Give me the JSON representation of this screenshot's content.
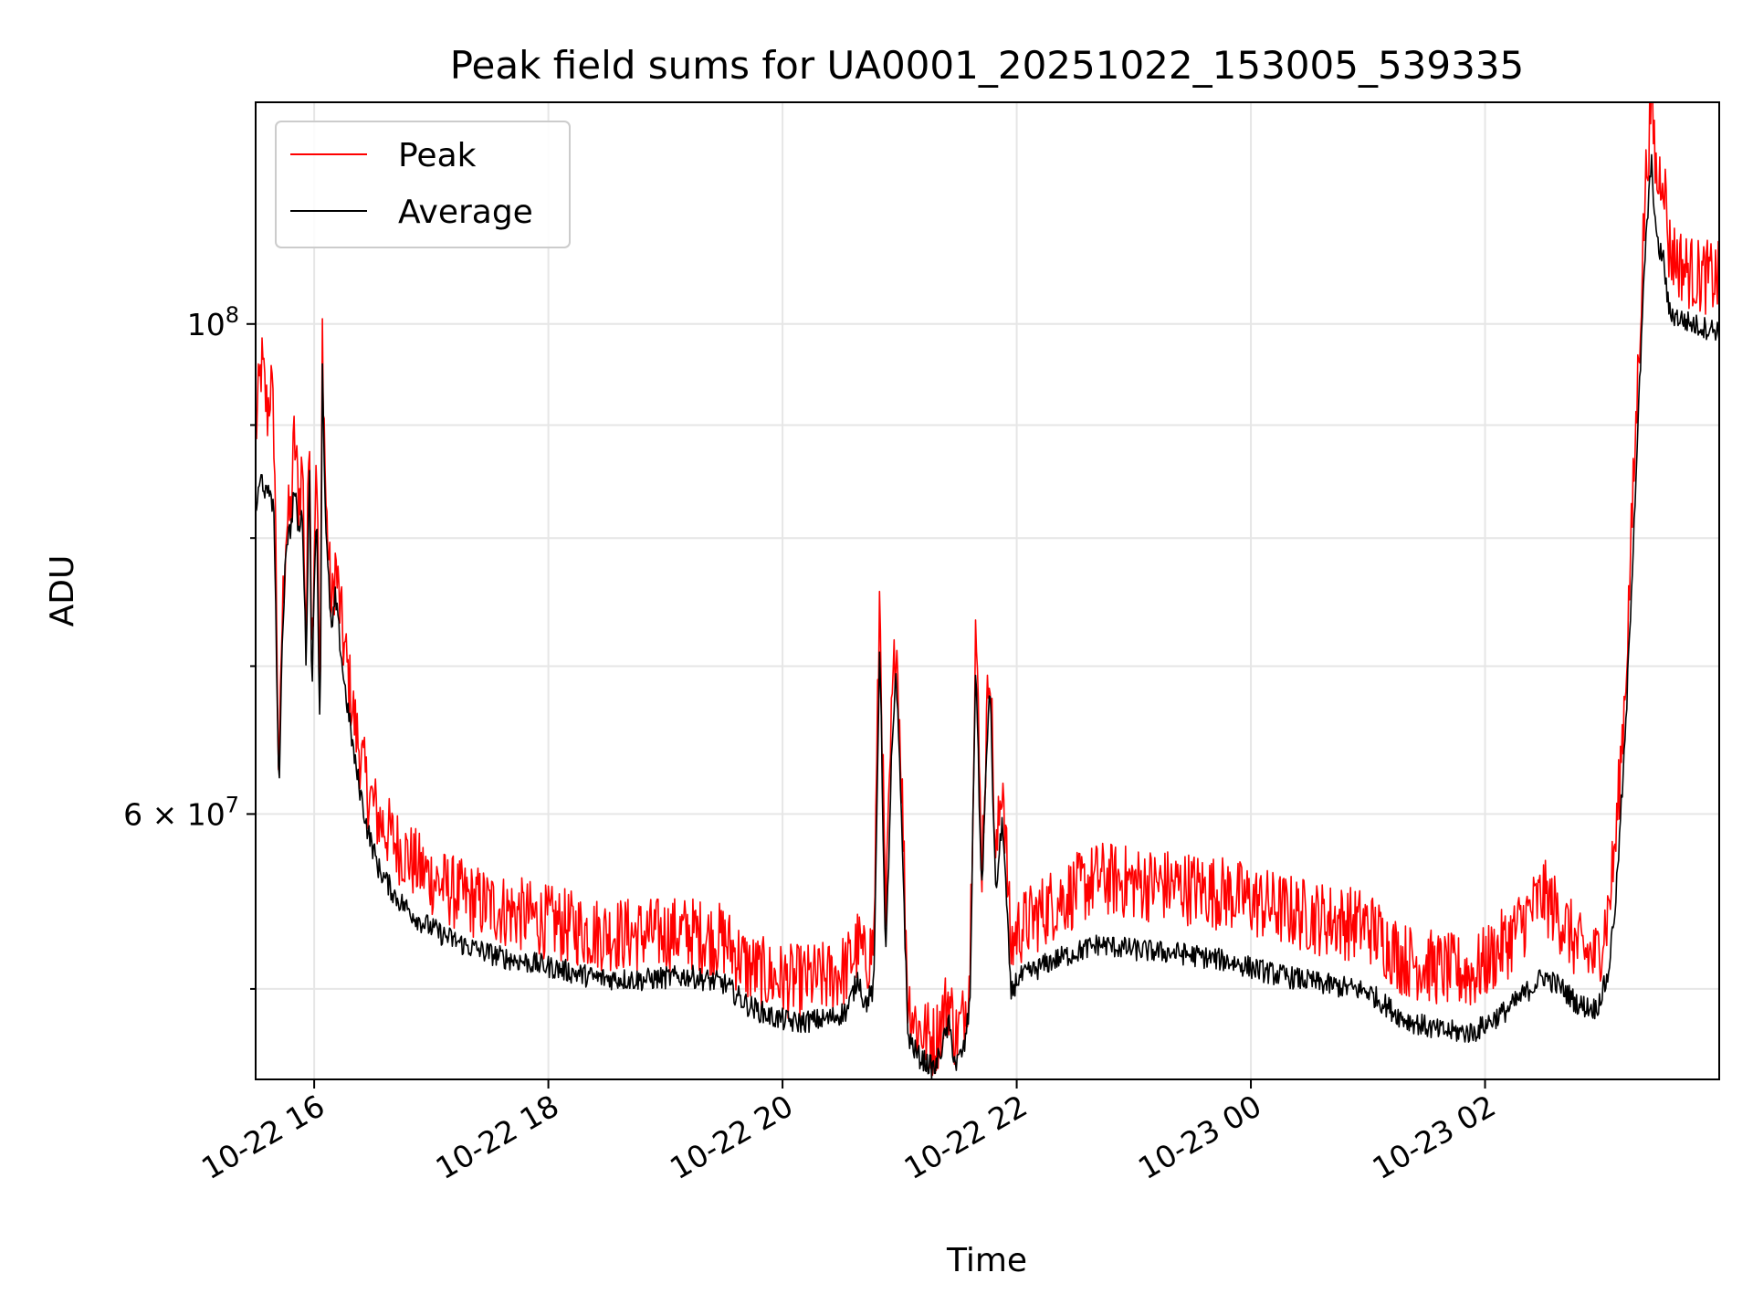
{
  "chart_data": {
    "type": "line",
    "title": "Peak field sums for UA0001_20251022_153005_539335",
    "xlabel": "Time",
    "ylabel": "ADU",
    "y_scale": "log",
    "ylim": [
      45500000,
      126000000
    ],
    "x_hours_range": [
      15.5,
      28.0
    ],
    "x_axis_origin": "2025-10-22 00:00",
    "grid": true,
    "legend_position": "upper-left",
    "x_ticks": [
      {
        "hours": 16,
        "label": "10-22 16"
      },
      {
        "hours": 18,
        "label": "10-22 18"
      },
      {
        "hours": 20,
        "label": "10-22 20"
      },
      {
        "hours": 22,
        "label": "10-22 22"
      },
      {
        "hours": 24,
        "label": "10-23 00"
      },
      {
        "hours": 26,
        "label": "10-23 02"
      }
    ],
    "y_major_ticks": [
      {
        "value": 100000000,
        "base": "10",
        "exp": "8",
        "coef": ""
      },
      {
        "value": 60000000,
        "base": "10",
        "exp": "7",
        "coef": "6 × "
      }
    ],
    "y_minor_ticks": [
      50000000,
      70000000,
      80000000,
      90000000
    ],
    "series": [
      {
        "name": "Peak",
        "color": "#ff0000",
        "noise_frac": 0.04,
        "points": [
          [
            15.5,
            88000000
          ],
          [
            15.55,
            95000000
          ],
          [
            15.6,
            90000000
          ],
          [
            15.63,
            93000000
          ],
          [
            15.66,
            88000000
          ],
          [
            15.7,
            60000000
          ],
          [
            15.72,
            71000000
          ],
          [
            15.76,
            80000000
          ],
          [
            15.8,
            81000000
          ],
          [
            15.83,
            88000000
          ],
          [
            15.87,
            82000000
          ],
          [
            15.9,
            86000000
          ],
          [
            15.93,
            71000000
          ],
          [
            15.96,
            91000000
          ],
          [
            15.98,
            70000000
          ],
          [
            16.02,
            88000000
          ],
          [
            16.05,
            65000000
          ],
          [
            16.07,
            98000000
          ],
          [
            16.1,
            82000000
          ],
          [
            16.15,
            73000000
          ],
          [
            16.18,
            77000000
          ],
          [
            16.25,
            71000000
          ],
          [
            16.35,
            65000000
          ],
          [
            16.45,
            61000000
          ],
          [
            16.55,
            59000000
          ],
          [
            16.7,
            57500000
          ],
          [
            16.9,
            56000000
          ],
          [
            17.1,
            55000000
          ],
          [
            17.3,
            54300000
          ],
          [
            17.6,
            53700000
          ],
          [
            18.0,
            53000000
          ],
          [
            18.4,
            52400000
          ],
          [
            18.8,
            52300000
          ],
          [
            19.2,
            52400000
          ],
          [
            19.5,
            52000000
          ],
          [
            19.7,
            50600000
          ],
          [
            19.9,
            50000000
          ],
          [
            20.1,
            49800000
          ],
          [
            20.4,
            50000000
          ],
          [
            20.55,
            50500000
          ],
          [
            20.65,
            51800000
          ],
          [
            20.7,
            50800000
          ],
          [
            20.78,
            51800000
          ],
          [
            20.83,
            75000000
          ],
          [
            20.88,
            52500000
          ],
          [
            20.93,
            65000000
          ],
          [
            20.97,
            72000000
          ],
          [
            21.02,
            61000000
          ],
          [
            21.07,
            49000000
          ],
          [
            21.15,
            47500000
          ],
          [
            21.3,
            46800000
          ],
          [
            21.42,
            49000000
          ],
          [
            21.48,
            47000000
          ],
          [
            21.55,
            48000000
          ],
          [
            21.6,
            50500000
          ],
          [
            21.65,
            73000000
          ],
          [
            21.7,
            56000000
          ],
          [
            21.77,
            71000000
          ],
          [
            21.82,
            56000000
          ],
          [
            21.88,
            62000000
          ],
          [
            21.95,
            51500000
          ],
          [
            22.0,
            52500000
          ],
          [
            22.3,
            54000000
          ],
          [
            22.7,
            55500000
          ],
          [
            23.0,
            55200000
          ],
          [
            23.4,
            55000000
          ],
          [
            23.8,
            54600000
          ],
          [
            24.2,
            53800000
          ],
          [
            24.6,
            53200000
          ],
          [
            25.0,
            52800000
          ],
          [
            25.3,
            51000000
          ],
          [
            25.6,
            50500000
          ],
          [
            25.9,
            50200000
          ],
          [
            26.2,
            52000000
          ],
          [
            26.5,
            54500000
          ],
          [
            26.65,
            53200000
          ],
          [
            26.8,
            51500000
          ],
          [
            26.95,
            51000000
          ],
          [
            27.05,
            53500000
          ],
          [
            27.12,
            58000000
          ],
          [
            27.2,
            68000000
          ],
          [
            27.3,
            92000000
          ],
          [
            27.37,
            114000000
          ],
          [
            27.42,
            125000000
          ],
          [
            27.47,
            114000000
          ],
          [
            27.52,
            117000000
          ],
          [
            27.57,
            107000000
          ],
          [
            27.62,
            106000000
          ],
          [
            27.7,
            104800000
          ],
          [
            27.8,
            104000000
          ],
          [
            27.9,
            103800000
          ],
          [
            28.0,
            103600000
          ]
        ]
      },
      {
        "name": "Average",
        "color": "#000000",
        "noise_frac": 0.012,
        "points": [
          [
            15.5,
            82000000
          ],
          [
            15.55,
            85000000
          ],
          [
            15.6,
            83000000
          ],
          [
            15.63,
            84000000
          ],
          [
            15.66,
            81000000
          ],
          [
            15.7,
            60000000
          ],
          [
            15.72,
            70000000
          ],
          [
            15.76,
            79500000
          ],
          [
            15.8,
            80500000
          ],
          [
            15.83,
            84000000
          ],
          [
            15.87,
            80000000
          ],
          [
            15.9,
            82000000
          ],
          [
            15.93,
            70000000
          ],
          [
            15.96,
            86000000
          ],
          [
            15.98,
            68000000
          ],
          [
            16.02,
            83000000
          ],
          [
            16.05,
            64000000
          ],
          [
            16.07,
            96000000
          ],
          [
            16.1,
            80000000
          ],
          [
            16.15,
            72000000
          ],
          [
            16.18,
            75000000
          ],
          [
            16.25,
            69000000
          ],
          [
            16.35,
            63000000
          ],
          [
            16.45,
            59000000
          ],
          [
            16.55,
            56500000
          ],
          [
            16.7,
            54800000
          ],
          [
            16.9,
            53500000
          ],
          [
            17.1,
            52700000
          ],
          [
            17.3,
            52100000
          ],
          [
            17.6,
            51500000
          ],
          [
            18.0,
            51000000
          ],
          [
            18.4,
            50400000
          ],
          [
            18.8,
            50300000
          ],
          [
            19.2,
            50500000
          ],
          [
            19.5,
            50100000
          ],
          [
            19.7,
            49000000
          ],
          [
            19.9,
            48400000
          ],
          [
            20.1,
            48100000
          ],
          [
            20.4,
            48300000
          ],
          [
            20.55,
            48700000
          ],
          [
            20.65,
            50500000
          ],
          [
            20.7,
            49000000
          ],
          [
            20.78,
            49800000
          ],
          [
            20.83,
            72000000
          ],
          [
            20.88,
            51000000
          ],
          [
            20.93,
            63000000
          ],
          [
            20.97,
            69000000
          ],
          [
            21.02,
            59000000
          ],
          [
            21.07,
            47500000
          ],
          [
            21.15,
            46500000
          ],
          [
            21.3,
            45800000
          ],
          [
            21.42,
            48000000
          ],
          [
            21.48,
            46000000
          ],
          [
            21.55,
            46800000
          ],
          [
            21.6,
            49000000
          ],
          [
            21.65,
            70500000
          ],
          [
            21.7,
            55000000
          ],
          [
            21.77,
            69000000
          ],
          [
            21.82,
            55000000
          ],
          [
            21.88,
            59500000
          ],
          [
            21.95,
            49500000
          ],
          [
            22.0,
            50300000
          ],
          [
            22.3,
            51300000
          ],
          [
            22.7,
            52200000
          ],
          [
            23.0,
            51900000
          ],
          [
            23.4,
            51700000
          ],
          [
            23.8,
            51300000
          ],
          [
            24.2,
            50600000
          ],
          [
            24.6,
            50100000
          ],
          [
            25.0,
            49700000
          ],
          [
            25.3,
            48300000
          ],
          [
            25.6,
            47700000
          ],
          [
            25.9,
            47600000
          ],
          [
            26.2,
            48800000
          ],
          [
            26.5,
            50500000
          ],
          [
            26.65,
            49900000
          ],
          [
            26.8,
            49000000
          ],
          [
            26.95,
            48800000
          ],
          [
            27.05,
            50500000
          ],
          [
            27.12,
            55000000
          ],
          [
            27.2,
            65000000
          ],
          [
            27.3,
            88000000
          ],
          [
            27.37,
            108000000
          ],
          [
            27.42,
            118000000
          ],
          [
            27.47,
            108000000
          ],
          [
            27.52,
            107000000
          ],
          [
            27.57,
            101000000
          ],
          [
            27.62,
            100500000
          ],
          [
            27.7,
            100000000
          ],
          [
            27.8,
            99500000
          ],
          [
            27.9,
            99200000
          ],
          [
            28.0,
            99000000
          ]
        ]
      }
    ]
  }
}
